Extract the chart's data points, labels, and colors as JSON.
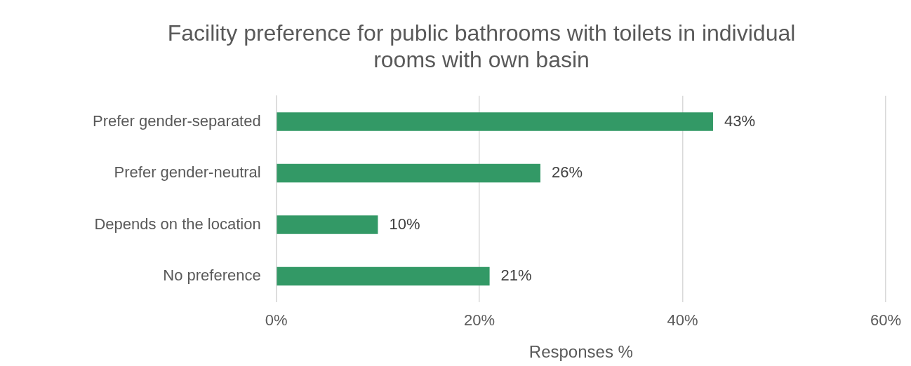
{
  "chart_data": {
    "type": "bar",
    "orientation": "horizontal",
    "title": "Facility preference for public bathrooms with toilets in individual rooms with own basin",
    "categories": [
      "Prefer gender-separated",
      "Prefer gender-neutral",
      "Depends on the location",
      "No preference"
    ],
    "values": [
      43,
      26,
      10,
      21
    ],
    "value_labels": [
      "43%",
      "26%",
      "10%",
      "21%"
    ],
    "color": "#339966",
    "xlim": [
      0,
      60
    ],
    "xticks": [
      {
        "value": 0,
        "label": "0%"
      },
      {
        "value": 20,
        "label": "20%"
      },
      {
        "value": 40,
        "label": "40%"
      },
      {
        "value": 60,
        "label": "60%"
      }
    ],
    "xlabel": "Responses %",
    "grid": "x",
    "legend": false
  }
}
